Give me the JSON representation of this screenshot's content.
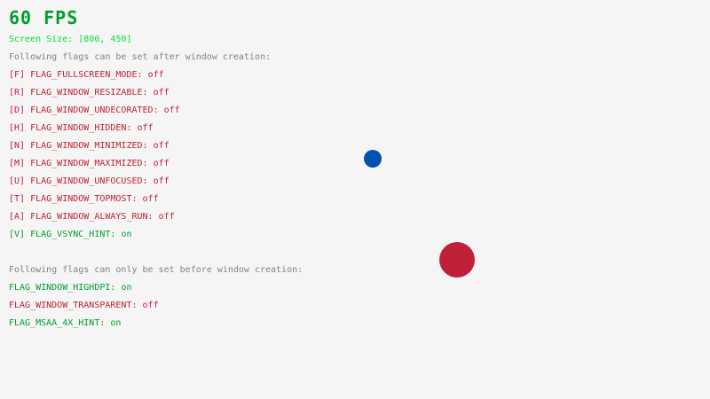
{
  "fps": "60 FPS",
  "screen_size": "Screen Size: [800, 450]",
  "after_header": "Following flags can be set after window creation:",
  "after_flags": [
    {
      "label": "[F] FLAG_FULLSCREEN_MODE:",
      "value": "off",
      "on": false
    },
    {
      "label": "[R] FLAG_WINDOW_RESIZABLE:",
      "value": "off",
      "on": false
    },
    {
      "label": "[D] FLAG_WINDOW_UNDECORATED:",
      "value": "off",
      "on": false
    },
    {
      "label": "[H] FLAG_WINDOW_HIDDEN:",
      "value": "off",
      "on": false
    },
    {
      "label": "[N] FLAG_WINDOW_MINIMIZED:",
      "value": "off",
      "on": false
    },
    {
      "label": "[M] FLAG_WINDOW_MAXIMIZED:",
      "value": "off",
      "on": false
    },
    {
      "label": "[U] FLAG_WINDOW_UNFOCUSED:",
      "value": "off",
      "on": false
    },
    {
      "label": "[T] FLAG_WINDOW_TOPMOST:",
      "value": "off",
      "on": false
    },
    {
      "label": "[A] FLAG_WINDOW_ALWAYS_RUN:",
      "value": "off",
      "on": false
    },
    {
      "label": "[V] FLAG_VSYNC_HINT:",
      "value": "on",
      "on": true
    }
  ],
  "before_header": "Following flags can only be set before window creation:",
  "before_flags": [
    {
      "label": "FLAG_WINDOW_HIGHDPI:",
      "value": "on",
      "on": true
    },
    {
      "label": "FLAG_WINDOW_TRANSPARENT:",
      "value": "off",
      "on": false
    },
    {
      "label": "FLAG_MSAA_4X_HINT:",
      "value": "on",
      "on": true
    }
  ],
  "colors": {
    "background": "#f5f5f5",
    "on": "#009e2f",
    "off": "#be2137",
    "info": "#828282",
    "screen_size": "#00e430",
    "ball_small": "#0052ac",
    "ball_large": "#be2137"
  }
}
